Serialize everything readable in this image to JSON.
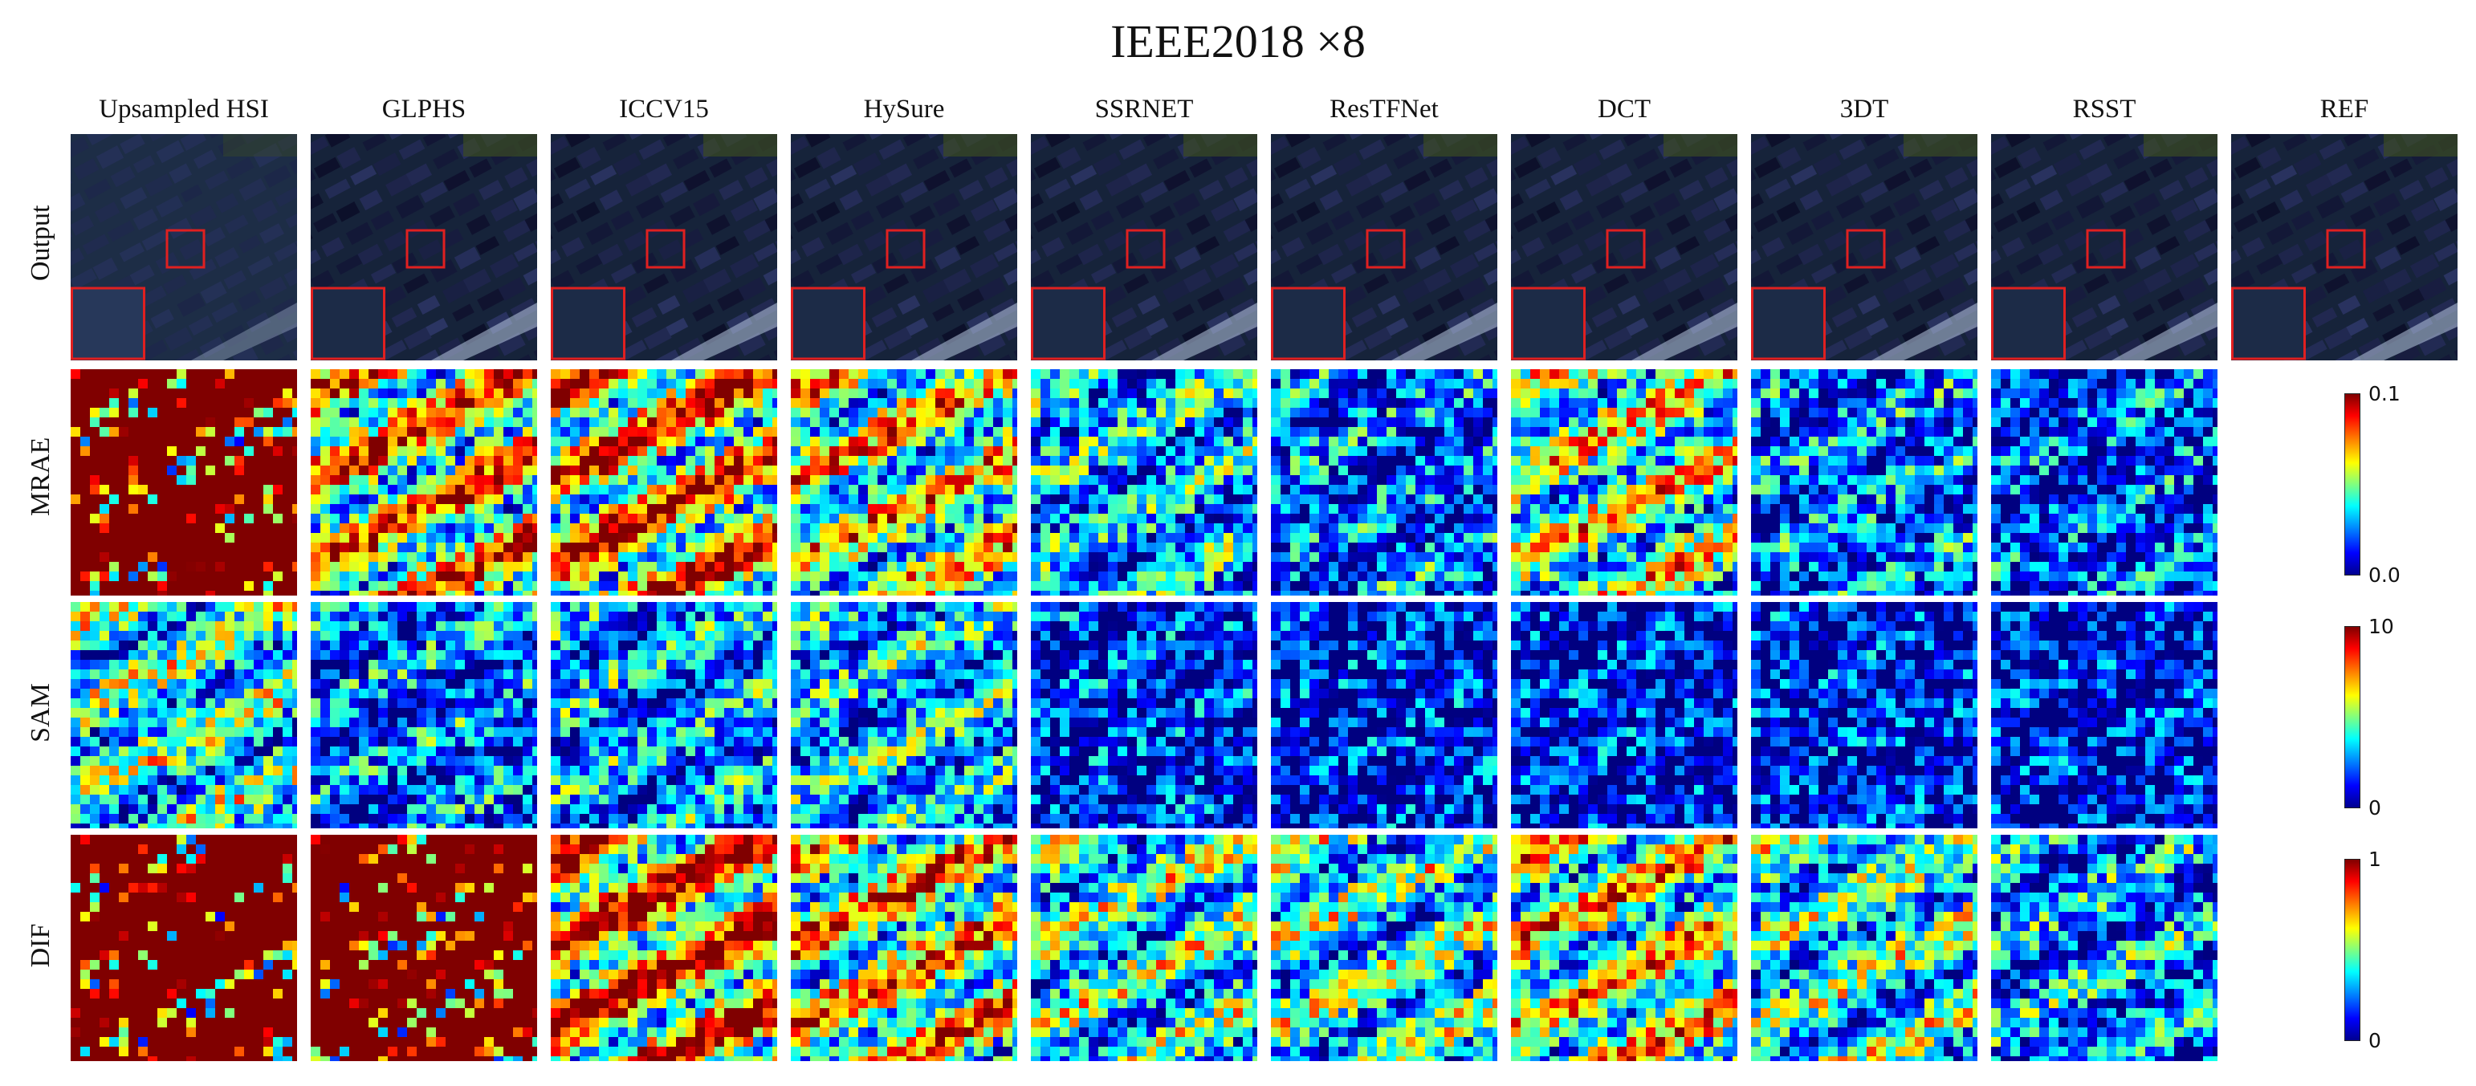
{
  "figure": {
    "title": "IEEE2018 ×8",
    "columns": [
      "Upsampled HSI",
      "GLPHS",
      "ICCV15",
      "HySure",
      "SSRNET",
      "ResTFNet",
      "DCT",
      "3DT",
      "RSST",
      "REF"
    ],
    "rows": [
      "Output",
      "MRAE",
      "SAM",
      "DIF"
    ],
    "colorbars": [
      {
        "row": "MRAE",
        "max_label": "0.1",
        "min_label": "0.0"
      },
      {
        "row": "SAM",
        "max_label": "10",
        "min_label": "0"
      },
      {
        "row": "DIF",
        "max_label": "1",
        "min_label": "0"
      }
    ],
    "error_levels": {
      "MRAE": [
        0.95,
        0.7,
        0.75,
        0.6,
        0.35,
        0.25,
        0.55,
        0.25,
        0.2
      ],
      "SAM": [
        0.45,
        0.25,
        0.3,
        0.35,
        0.15,
        0.12,
        0.12,
        0.12,
        0.1
      ],
      "DIF": [
        0.95,
        0.9,
        0.8,
        0.65,
        0.45,
        0.45,
        0.6,
        0.45,
        0.3
      ]
    },
    "colors": {
      "zoom_box": "#e02020",
      "background": "#ffffff"
    }
  }
}
